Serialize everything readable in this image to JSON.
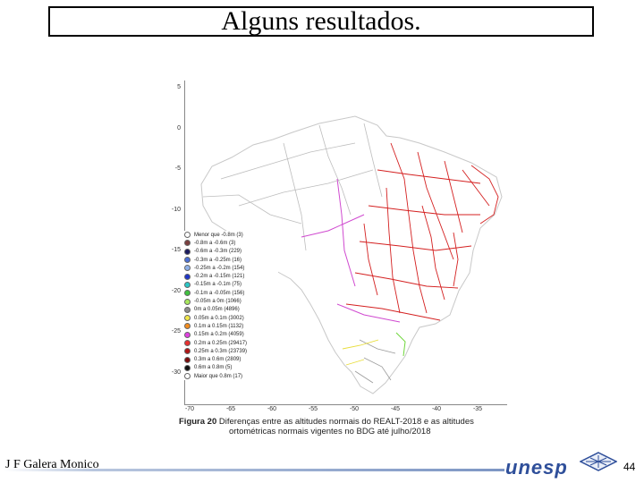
{
  "slide": {
    "title": "Alguns resultados.",
    "author": "J F Galera Monico",
    "brand": "unesp",
    "page_number": "44"
  },
  "figure": {
    "y_ticks": [
      "5",
      "0",
      "-5",
      "-10",
      "-15",
      "-20",
      "-25",
      "-30"
    ],
    "x_ticks": [
      "-70",
      "-65",
      "-60",
      "-55",
      "-50",
      "-45",
      "-40",
      "-35"
    ],
    "legend": [
      {
        "label": "Menor que -0.8m (3)",
        "color": "#ffffff"
      },
      {
        "label": "-0.8m a -0.6m (3)",
        "color": "#7b3f3f"
      },
      {
        "label": "-0.6m a -0.3m (229)",
        "color": "#1b1b5e"
      },
      {
        "label": "-0.3m a -0.25m (16)",
        "color": "#4a6fd6"
      },
      {
        "label": "-0.25m a -0.2m (154)",
        "color": "#8fb1e8"
      },
      {
        "label": "-0.2m a -0.15m (121)",
        "color": "#1f35c9"
      },
      {
        "label": "-0.15m a -0.1m (75)",
        "color": "#2ac7c7"
      },
      {
        "label": "-0.1m a -0.05m (156)",
        "color": "#3fc23f"
      },
      {
        "label": "-0.05m a 0m (1066)",
        "color": "#a8e85c"
      },
      {
        "label": "0m a 0.05m (4896)",
        "color": "#8c8c8c"
      },
      {
        "label": "0.05m a 0.1m (3002)",
        "color": "#f2e84a"
      },
      {
        "label": "0.1m a 0.15m (1132)",
        "color": "#f28c1e"
      },
      {
        "label": "0.15m a 0.2m (4059)",
        "color": "#e040e0"
      },
      {
        "label": "0.2m a 0.25m (29417)",
        "color": "#e83030"
      },
      {
        "label": "0.25m a 0.3m (23739)",
        "color": "#b01515"
      },
      {
        "label": "0.3m a 0.6m (2809)",
        "color": "#7a0d0d"
      },
      {
        "label": "0.6m a 0.8m (5)",
        "color": "#111111"
      },
      {
        "label": "Maior que 0.8m (17)",
        "color": "#ffffff"
      }
    ],
    "caption_lead": "Figura 20",
    "caption_line1": "Diferenças entre as altitudes normais do REALT-2018 e as altitudes",
    "caption_line2": "ortométricas normais vigentes no BDG até julho/2018"
  }
}
